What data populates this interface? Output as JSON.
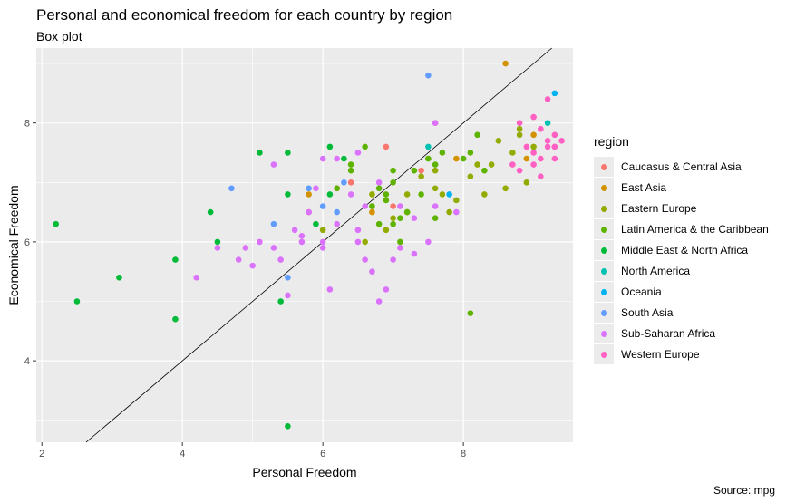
{
  "chart_data": {
    "type": "scatter",
    "title": "Personal and economical freedom for each country by region",
    "subtitle": "Box plot",
    "caption": "Source: mpg",
    "xlabel": "Personal Freedom",
    "ylabel": "Economical Freedom",
    "xlim": [
      1.92,
      9.56
    ],
    "ylim": [
      2.63,
      9.26
    ],
    "xticks": [
      2,
      4,
      6,
      8
    ],
    "yticks": [
      4,
      6,
      8
    ],
    "reference_line": {
      "slope": 1,
      "intercept": 0
    },
    "grid": true,
    "legend": {
      "title": "region",
      "placement": "right"
    },
    "series": [
      {
        "name": "Caucasus & Central Asia",
        "color": "#F8766D",
        "points": [
          [
            7.6,
            8.0
          ],
          [
            6.4,
            7.0
          ],
          [
            6.2,
            6.9
          ],
          [
            5.8,
            6.5
          ],
          [
            6.9,
            7.6
          ],
          [
            7.4,
            7.2
          ],
          [
            7.0,
            6.6
          ]
        ]
      },
      {
        "name": "East Asia",
        "color": "#D39200",
        "points": [
          [
            8.6,
            9.0
          ],
          [
            5.8,
            6.8
          ],
          [
            6.7,
            6.5
          ],
          [
            7.9,
            7.4
          ],
          [
            9.0,
            7.8
          ],
          [
            8.9,
            7.4
          ]
        ]
      },
      {
        "name": "Eastern Europe",
        "color": "#93AA00",
        "points": [
          [
            6.6,
            6.0
          ],
          [
            7.6,
            6.9
          ],
          [
            7.8,
            6.5
          ],
          [
            8.2,
            7.3
          ],
          [
            8.4,
            7.3
          ],
          [
            8.5,
            7.7
          ],
          [
            8.7,
            7.5
          ],
          [
            8.8,
            7.9
          ],
          [
            8.9,
            7.0
          ],
          [
            9.0,
            7.6
          ],
          [
            8.6,
            6.9
          ],
          [
            8.1,
            7.1
          ],
          [
            7.4,
            7.1
          ],
          [
            7.0,
            6.4
          ],
          [
            6.7,
            6.8
          ],
          [
            6.9,
            6.2
          ],
          [
            7.2,
            6.5
          ],
          [
            6.0,
            6.2
          ],
          [
            8.8,
            7.8
          ],
          [
            7.7,
            6.8
          ],
          [
            7.6,
            7.2
          ],
          [
            8.3,
            6.8
          ],
          [
            7.9,
            6.7
          ],
          [
            7.2,
            6.8
          ]
        ]
      },
      {
        "name": "Latin America & the Caribbean",
        "color": "#5EB300",
        "points": [
          [
            8.1,
            4.8
          ],
          [
            7.0,
            7.2
          ],
          [
            7.6,
            6.4
          ],
          [
            7.1,
            6.0
          ],
          [
            7.7,
            7.5
          ],
          [
            6.6,
            7.6
          ],
          [
            8.2,
            7.8
          ],
          [
            8.1,
            7.5
          ],
          [
            7.3,
            7.2
          ],
          [
            7.6,
            7.3
          ],
          [
            6.9,
            6.8
          ],
          [
            7.0,
            6.3
          ],
          [
            7.2,
            6.5
          ],
          [
            6.4,
            7.3
          ],
          [
            6.4,
            7.2
          ],
          [
            6.9,
            6.7
          ],
          [
            6.8,
            6.3
          ],
          [
            6.8,
            6.9
          ],
          [
            7.0,
            7.0
          ],
          [
            7.4,
            6.8
          ],
          [
            6.7,
            6.6
          ],
          [
            7.5,
            7.4
          ],
          [
            6.2,
            6.9
          ],
          [
            8.0,
            7.4
          ],
          [
            8.3,
            7.2
          ],
          [
            7.1,
            6.4
          ]
        ]
      },
      {
        "name": "Middle East & North Africa",
        "color": "#00BA38",
        "points": [
          [
            2.2,
            6.3
          ],
          [
            2.5,
            5.0
          ],
          [
            3.1,
            5.4
          ],
          [
            3.9,
            5.7
          ],
          [
            3.9,
            4.7
          ],
          [
            4.4,
            6.5
          ],
          [
            4.5,
            6.0
          ],
          [
            5.1,
            7.5
          ],
          [
            5.4,
            5.0
          ],
          [
            5.5,
            7.5
          ],
          [
            5.5,
            6.8
          ],
          [
            5.5,
            2.9
          ],
          [
            6.1,
            7.6
          ],
          [
            6.1,
            6.8
          ],
          [
            6.3,
            7.4
          ],
          [
            5.9,
            6.3
          ]
        ]
      },
      {
        "name": "North America",
        "color": "#00C1B2",
        "points": [
          [
            9.2,
            8.0
          ],
          [
            7.5,
            7.6
          ]
        ]
      },
      {
        "name": "Oceania",
        "color": "#00B3F0",
        "points": [
          [
            9.3,
            8.5
          ],
          [
            7.8,
            6.8
          ]
        ]
      },
      {
        "name": "South Asia",
        "color": "#619CFF",
        "points": [
          [
            7.5,
            8.8
          ],
          [
            4.7,
            6.9
          ],
          [
            5.3,
            6.3
          ],
          [
            5.5,
            5.4
          ],
          [
            5.8,
            6.9
          ],
          [
            6.2,
            6.5
          ],
          [
            6.3,
            7.0
          ],
          [
            6.0,
            6.6
          ]
        ]
      },
      {
        "name": "Sub-Saharan Africa",
        "color": "#DB72FB",
        "points": [
          [
            4.2,
            5.4
          ],
          [
            4.5,
            5.9
          ],
          [
            4.8,
            5.7
          ],
          [
            4.9,
            5.9
          ],
          [
            5.1,
            6.0
          ],
          [
            5.3,
            5.9
          ],
          [
            5.4,
            5.7
          ],
          [
            5.5,
            5.1
          ],
          [
            5.6,
            6.2
          ],
          [
            5.7,
            6.0
          ],
          [
            5.8,
            6.5
          ],
          [
            6.0,
            5.9
          ],
          [
            6.1,
            5.2
          ],
          [
            6.2,
            6.3
          ],
          [
            6.5,
            6.0
          ],
          [
            6.6,
            5.7
          ],
          [
            6.7,
            5.5
          ],
          [
            6.8,
            5.0
          ],
          [
            6.9,
            5.2
          ],
          [
            7.0,
            5.7
          ],
          [
            7.1,
            5.9
          ],
          [
            7.3,
            5.8
          ],
          [
            7.5,
            6.0
          ],
          [
            5.3,
            7.3
          ],
          [
            6.0,
            7.4
          ],
          [
            6.2,
            7.4
          ],
          [
            6.5,
            7.5
          ],
          [
            6.8,
            7.0
          ],
          [
            7.6,
            6.6
          ],
          [
            7.9,
            6.5
          ],
          [
            5.9,
            6.9
          ],
          [
            6.4,
            6.8
          ],
          [
            6.5,
            6.2
          ],
          [
            7.3,
            6.4
          ],
          [
            7.6,
            8.0
          ],
          [
            5.0,
            5.6
          ],
          [
            5.7,
            6.1
          ],
          [
            6.6,
            6.6
          ],
          [
            7.1,
            6.6
          ],
          [
            6.0,
            6.0
          ]
        ]
      },
      {
        "name": "Western Europe",
        "color": "#FF61C3",
        "points": [
          [
            9.0,
            8.1
          ],
          [
            9.1,
            7.9
          ],
          [
            9.2,
            7.7
          ],
          [
            9.3,
            7.6
          ],
          [
            9.3,
            7.8
          ],
          [
            9.4,
            7.7
          ],
          [
            9.0,
            7.3
          ],
          [
            8.9,
            7.6
          ],
          [
            9.1,
            7.4
          ],
          [
            9.2,
            7.6
          ],
          [
            9.3,
            7.4
          ],
          [
            8.7,
            7.3
          ],
          [
            8.8,
            7.2
          ],
          [
            9.2,
            8.4
          ],
          [
            9.1,
            7.1
          ],
          [
            9.3,
            7.6
          ],
          [
            8.8,
            8.0
          ],
          [
            9.0,
            7.5
          ]
        ]
      }
    ]
  }
}
